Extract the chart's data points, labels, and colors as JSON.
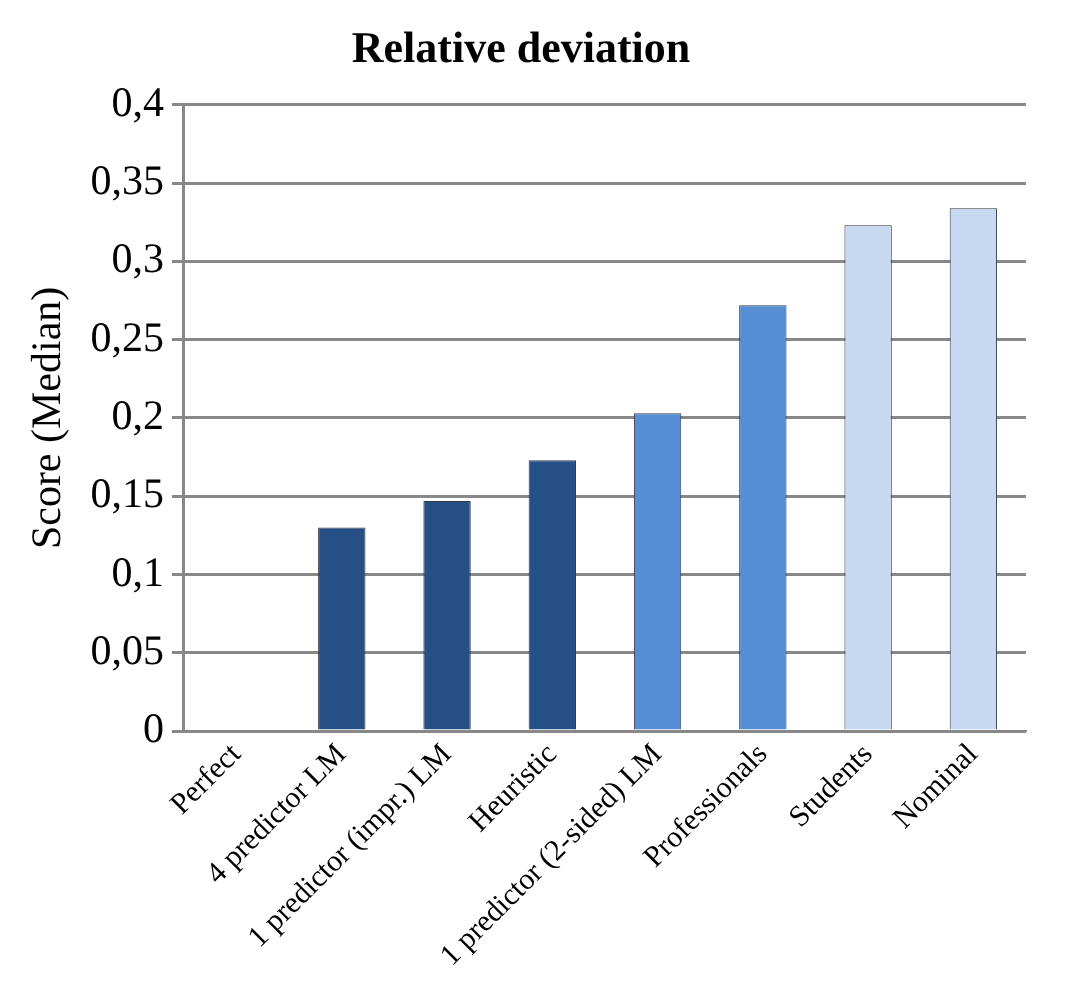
{
  "chart_data": {
    "type": "bar",
    "title": "Relative deviation",
    "ylabel": "Score (Median)",
    "categories": [
      "Perfect",
      "4 predictor LM",
      "1 predictor (impr.) LM",
      "Heuristic",
      "1 predictor (2-sided) LM",
      "Professionals",
      "Students",
      "Nominal"
    ],
    "values": [
      0,
      0.13,
      0.147,
      0.173,
      0.203,
      0.272,
      0.323,
      0.334
    ],
    "colors": [
      "#254f85",
      "#254f85",
      "#254f85",
      "#254f85",
      "#558ed5",
      "#558ed5",
      "#c6d9f1",
      "#c6d9f1"
    ],
    "ylim": [
      0,
      0.4
    ],
    "yticks": [
      {
        "value": 0,
        "label": "0"
      },
      {
        "value": 0.05,
        "label": "0,05"
      },
      {
        "value": 0.1,
        "label": "0,1"
      },
      {
        "value": 0.15,
        "label": "0,15"
      },
      {
        "value": 0.2,
        "label": "0,2"
      },
      {
        "value": 0.25,
        "label": "0,25"
      },
      {
        "value": 0.3,
        "label": "0,3"
      },
      {
        "value": 0.35,
        "label": "0,35"
      },
      {
        "value": 0.4,
        "label": "0,4"
      }
    ],
    "grid": "y",
    "legend": false
  }
}
